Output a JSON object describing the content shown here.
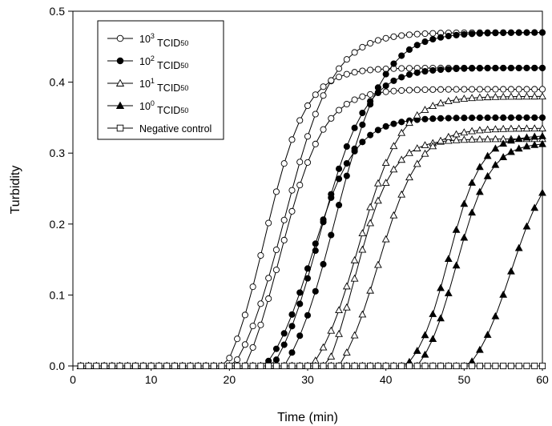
{
  "chart_data": {
    "type": "line",
    "title": "",
    "xlabel": "Time (min)",
    "ylabel": "Turbidity",
    "xlim": [
      0,
      60
    ],
    "ylim": [
      0,
      0.5
    ],
    "x_ticks": [
      "0",
      "10",
      "20",
      "30",
      "40",
      "50",
      "60"
    ],
    "y_ticks": [
      "0.0",
      "0.1",
      "0.2",
      "0.3",
      "0.4",
      "0.5"
    ],
    "grid": false,
    "legend_position": "top-left",
    "legend": [
      {
        "base": "10",
        "exp": "3",
        "name": "TCID",
        "sub": "50",
        "marker": "circle-open"
      },
      {
        "base": "10",
        "exp": "2",
        "name": "TCID",
        "sub": "50",
        "marker": "circle-filled"
      },
      {
        "base": "10",
        "exp": "1",
        "name": "TCID",
        "sub": "50",
        "marker": "triangle-open"
      },
      {
        "base": "10",
        "exp": "0",
        "name": "TCID",
        "sub": "50",
        "marker": "triangle-filled"
      },
      {
        "base": "Negative control",
        "exp": "",
        "name": "",
        "sub": "",
        "marker": "square-open"
      }
    ],
    "x": [
      1,
      2,
      3,
      4,
      5,
      6,
      7,
      8,
      9,
      10,
      11,
      12,
      13,
      14,
      15,
      16,
      17,
      18,
      19,
      20,
      21,
      22,
      23,
      24,
      25,
      26,
      27,
      28,
      29,
      30,
      31,
      32,
      33,
      34,
      35,
      36,
      37,
      38,
      39,
      40,
      41,
      42,
      43,
      44,
      45,
      46,
      47,
      48,
      49,
      50,
      51,
      52,
      53,
      54,
      55,
      56,
      57,
      58,
      59,
      60
    ],
    "series": [
      {
        "group": 0,
        "marker": "circle-open",
        "plateau": 0.42,
        "midpoint": 24.5,
        "steepness": 0.38,
        "start": 19.5
      },
      {
        "group": 0,
        "marker": "circle-open",
        "plateau": 0.47,
        "midpoint": 27.0,
        "steepness": 0.32,
        "start": 20.5
      },
      {
        "group": 0,
        "marker": "circle-open",
        "plateau": 0.39,
        "midpoint": 26.5,
        "steepness": 0.36,
        "start": 22.0
      },
      {
        "group": 1,
        "marker": "circle-filled",
        "plateau": 0.35,
        "midpoint": 30.5,
        "steepness": 0.36,
        "start": 24.5
      },
      {
        "group": 1,
        "marker": "circle-filled",
        "plateau": 0.42,
        "midpoint": 31.5,
        "steepness": 0.34,
        "start": 25.5
      },
      {
        "group": 1,
        "marker": "circle-filled",
        "plateau": 0.47,
        "midpoint": 33.5,
        "steepness": 0.32,
        "start": 27.0
      },
      {
        "group": 2,
        "marker": "triangle-open",
        "plateau": 0.38,
        "midpoint": 36.5,
        "steepness": 0.36,
        "start": 30.5
      },
      {
        "group": 2,
        "marker": "triangle-open",
        "plateau": 0.32,
        "midpoint": 36.0,
        "steepness": 0.42,
        "start": 32.5
      },
      {
        "group": 2,
        "marker": "triangle-open",
        "plateau": 0.335,
        "midpoint": 39.0,
        "steepness": 0.38,
        "start": 34.0
      },
      {
        "group": 3,
        "marker": "triangle-filled",
        "plateau": 0.325,
        "midpoint": 48.0,
        "steepness": 0.48,
        "start": 42.5
      },
      {
        "group": 3,
        "marker": "triangle-filled",
        "plateau": 0.315,
        "midpoint": 49.0,
        "steepness": 0.46,
        "start": 44.0
      },
      {
        "group": 3,
        "marker": "triangle-filled",
        "plateau": 0.3,
        "midpoint": 56.0,
        "steepness": 0.4,
        "start": 50.5
      },
      {
        "group": 4,
        "marker": "square-open",
        "plateau": 0.0,
        "midpoint": 0,
        "steepness": 0,
        "start": 99
      }
    ]
  }
}
